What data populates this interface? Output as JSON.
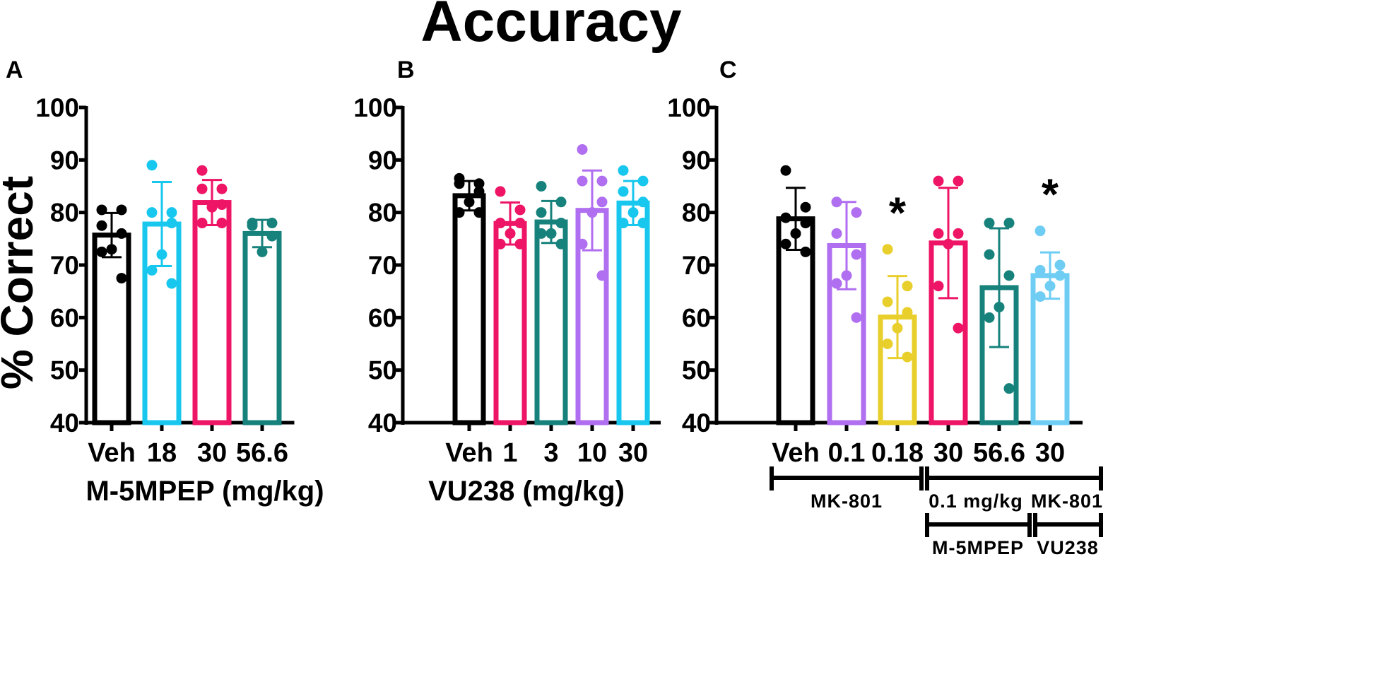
{
  "title": "Accuracy",
  "ylabel": "% Correct",
  "chart_data": [
    {
      "panel": "A",
      "type": "bar",
      "xlabel": "M-5MPEP (mg/kg)",
      "ylim": [
        40,
        100
      ],
      "yticks": [
        40,
        50,
        60,
        70,
        80,
        90,
        100
      ],
      "categories": [
        "Veh",
        "18",
        "30",
        "56.6"
      ],
      "colors": [
        "#000000",
        "#17c7ee",
        "#ee1466",
        "#17827c"
      ],
      "means": [
        75.7,
        77.8,
        81.9,
        76.0
      ],
      "sd": [
        4.2,
        8.0,
        4.3,
        2.6
      ],
      "points": [
        [
          80.5,
          80.5,
          77.5,
          76.0,
          73.0,
          72.5,
          67.5
        ],
        [
          89.0,
          80.0,
          80.0,
          78.0,
          72.0,
          69.0,
          66.5
        ],
        [
          88.0,
          84.5,
          84.5,
          81.5,
          81.0,
          78.0,
          78.0
        ],
        [
          78.0,
          78.0,
          77.5,
          75.5,
          72.5
        ]
      ],
      "annotations": []
    },
    {
      "panel": "B",
      "type": "bar",
      "xlabel": "VU238 (mg/kg)",
      "ylim": [
        40,
        100
      ],
      "yticks": [
        40,
        50,
        60,
        70,
        80,
        90,
        100
      ],
      "categories": [
        "Veh",
        "1",
        "3",
        "10",
        "30"
      ],
      "colors": [
        "#000000",
        "#ee1466",
        "#17827c",
        "#b06ef0",
        "#17c7ee"
      ],
      "means": [
        83.2,
        77.9,
        78.2,
        80.4,
        81.8
      ],
      "sd": [
        2.8,
        4.0,
        4.0,
        7.6,
        4.2
      ],
      "points": [
        [
          86.5,
          85.5,
          85.5,
          84.0,
          82.0,
          80.0,
          80.0
        ],
        [
          84.0,
          80.5,
          78.0,
          78.0,
          76.0,
          74.0,
          74.0
        ],
        [
          85.0,
          82.0,
          80.0,
          78.0,
          76.0,
          76.0,
          74.0
        ],
        [
          92.0,
          86.0,
          86.0,
          82.0,
          80.0,
          74.0,
          68.0
        ],
        [
          88.0,
          86.0,
          84.0,
          82.0,
          80.0,
          78.0,
          78.0
        ]
      ],
      "annotations": []
    },
    {
      "panel": "C",
      "type": "bar",
      "xlabel": "",
      "ylim": [
        40,
        100
      ],
      "yticks": [
        40,
        50,
        60,
        70,
        80,
        90,
        100
      ],
      "categories": [
        "Veh",
        "0.1",
        "0.18",
        "30",
        "56.6",
        "30"
      ],
      "colors": [
        "#000000",
        "#b06ef0",
        "#e8cf2c",
        "#ee1466",
        "#17827c",
        "#6fcdf4"
      ],
      "means": [
        78.8,
        73.7,
        60.1,
        74.2,
        65.7,
        68.0
      ],
      "sd": [
        5.9,
        8.3,
        7.8,
        10.5,
        11.3,
        4.4
      ],
      "points": [
        [
          88.0,
          81.0,
          79.0,
          78.0,
          76.0,
          74.0,
          72.5
        ],
        [
          82.0,
          80.0,
          76.0,
          72.0,
          68.0,
          66.5,
          60.0
        ],
        [
          73.0,
          66.0,
          63.0,
          61.0,
          58.0,
          55.0,
          52.5
        ],
        [
          86.0,
          86.0,
          76.0,
          76.0,
          74.0,
          66.0,
          58.0
        ],
        [
          78.0,
          78.0,
          72.0,
          68.0,
          62.0,
          60.0,
          46.5
        ],
        [
          76.5,
          70.0,
          69.0,
          68.0,
          66.0,
          64.0
        ]
      ],
      "annotations": [
        {
          "category_index": 2,
          "text": "*"
        },
        {
          "category_index": 5,
          "text": "*"
        }
      ],
      "group_labels": {
        "mk801": "MK-801",
        "dose": "0.1 mg/kg",
        "mk801b": "MK-801",
        "m5mpep": "M-5MPEP",
        "vu238": "VU238"
      }
    }
  ]
}
